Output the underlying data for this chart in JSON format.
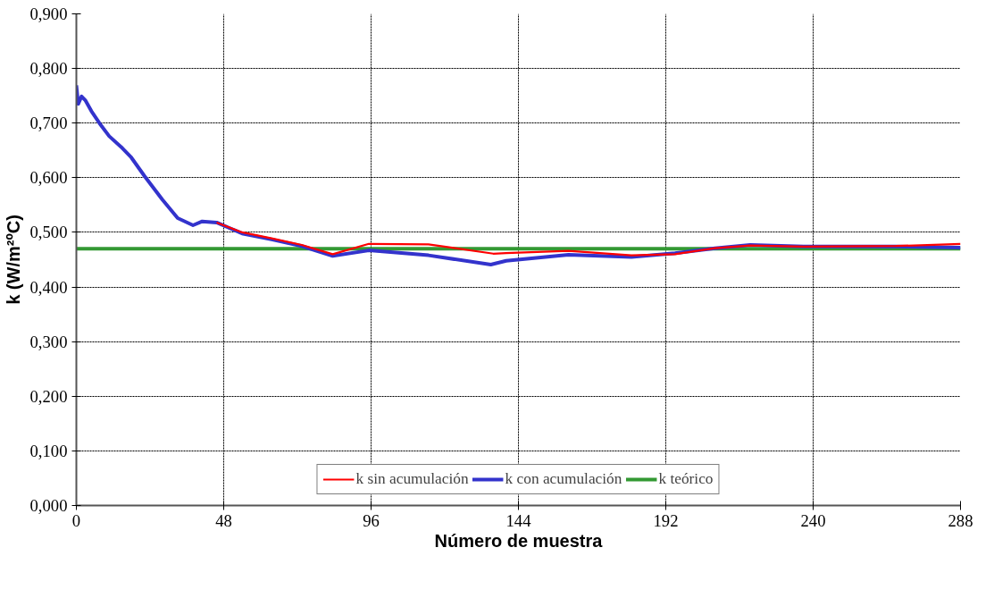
{
  "chart_data": {
    "type": "line",
    "xlabel": "Número de muestra",
    "ylabel": "k (W/m²ºC)",
    "xlim": [
      0,
      288
    ],
    "xticks": [
      0,
      48,
      96,
      144,
      192,
      240,
      288
    ],
    "ylim": [
      0,
      0.9
    ],
    "yticks": [
      {
        "value": 0,
        "label": "0,000"
      },
      {
        "value": 0.1,
        "label": "0,100"
      },
      {
        "value": 0.2,
        "label": "0,200"
      },
      {
        "value": 0.3,
        "label": "0,300"
      },
      {
        "value": 0.4,
        "label": "0,400"
      },
      {
        "value": 0.5,
        "label": "0,500"
      },
      {
        "value": 0.6,
        "label": "0,600"
      },
      {
        "value": 0.7,
        "label": "0,700"
      },
      {
        "value": 0.8,
        "label": "0,800"
      },
      {
        "value": 0.9,
        "label": "0,900"
      }
    ],
    "grid": true,
    "legend": "bottom",
    "line_style": "solid",
    "marker": "none",
    "series": [
      {
        "name": "k sin acumulación",
        "color": "#ff0000",
        "x": [
          45.7,
          54,
          63.6,
          73.4,
          83.5,
          95.3,
          114.7,
          135.8,
          140,
          160.3,
          180.8,
          195,
          208,
          219.5,
          236.9,
          267,
          288
        ],
        "values": [
          0.518,
          0.5,
          0.489,
          0.477,
          0.46,
          0.479,
          0.478,
          0.461,
          0.462,
          0.466,
          0.458,
          0.46,
          0.471,
          0.476,
          0.474,
          0.475,
          0.479
        ]
      },
      {
        "name": "k con acumulación",
        "color": "#3333cc",
        "x": [
          0,
          0.6,
          1.7,
          2.9,
          4.9,
          7.5,
          10.7,
          15,
          17.9,
          22.2,
          28,
          33,
          38,
          41,
          45.7,
          54,
          63.6,
          73.4,
          83.5,
          95.3,
          114.7,
          135,
          140,
          160.3,
          180.8,
          195,
          208,
          219.5,
          236.9,
          267,
          288
        ],
        "values": [
          0.769,
          0.735,
          0.749,
          0.742,
          0.722,
          0.7,
          0.676,
          0.654,
          0.637,
          0.603,
          0.56,
          0.526,
          0.513,
          0.52,
          0.518,
          0.498,
          0.487,
          0.475,
          0.457,
          0.467,
          0.458,
          0.441,
          0.448,
          0.459,
          0.455,
          0.462,
          0.471,
          0.477,
          0.474,
          0.474,
          0.472
        ]
      },
      {
        "name": "k teórico",
        "color": "#339933",
        "x": [
          0,
          288
        ],
        "values": [
          0.47,
          0.47
        ]
      }
    ]
  }
}
